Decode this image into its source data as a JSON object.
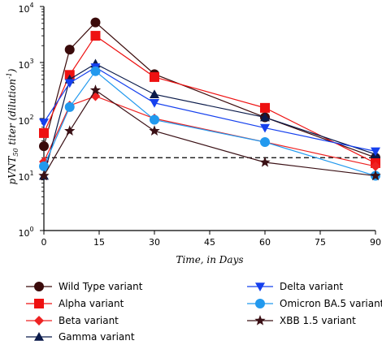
{
  "chart_data": {
    "type": "line",
    "ylabel": "pVNT50 titer (dilution⁻¹)",
    "ylabel_parts": {
      "main": "pVNT",
      "sub": "50",
      "rest": " titer (dilution",
      "sup": "-1",
      "end": ")"
    },
    "xlabel": "Time, in Days",
    "x": [
      0,
      7,
      14,
      30,
      60,
      90
    ],
    "xlim": [
      0,
      90
    ],
    "xticks": [
      0,
      15,
      30,
      45,
      60,
      75,
      90
    ],
    "y_scale": "log",
    "ylim": [
      1,
      10000
    ],
    "yticks": [
      {
        "value": 1,
        "base": "10",
        "exp": "0"
      },
      {
        "value": 10,
        "base": "10",
        "exp": "1"
      },
      {
        "value": 100,
        "base": "10",
        "exp": "2"
      },
      {
        "value": 1000,
        "base": "10",
        "exp": "3"
      },
      {
        "value": 10000,
        "base": "10",
        "exp": "4"
      }
    ],
    "threshold": {
      "value": 20,
      "style": "dashed"
    },
    "series": [
      {
        "name": "Wild Type variant",
        "color": "#3a0a0a",
        "marker": "circle",
        "values": [
          32,
          1700,
          5200,
          620,
          105,
          20
        ]
      },
      {
        "name": "Alpha variant",
        "color": "#ee1111",
        "marker": "square",
        "values": [
          55,
          600,
          3000,
          550,
          155,
          16
        ]
      },
      {
        "name": "Beta variant",
        "color": "#ee2222",
        "marker": "diamond",
        "values": [
          17,
          170,
          250,
          100,
          38,
          14
        ]
      },
      {
        "name": "Gamma variant",
        "color": "#0a1a4a",
        "marker": "triangle-up",
        "values": [
          9.5,
          500,
          950,
          270,
          105,
          23
        ]
      },
      {
        "name": "Delta variant",
        "color": "#1540ee",
        "marker": "triangle-down",
        "values": [
          85,
          430,
          820,
          190,
          68,
          26
        ]
      },
      {
        "name": "Omicron BA.5 variant",
        "color": "#2299ee",
        "marker": "circle",
        "values": [
          14,
          160,
          700,
          95,
          38,
          9.5
        ]
      },
      {
        "name": "XBB 1.5 variant",
        "color": "#3a1015",
        "marker": "star",
        "values": [
          9.5,
          60,
          320,
          60,
          16.5,
          9.5
        ]
      }
    ],
    "legend_position": "bottom"
  }
}
